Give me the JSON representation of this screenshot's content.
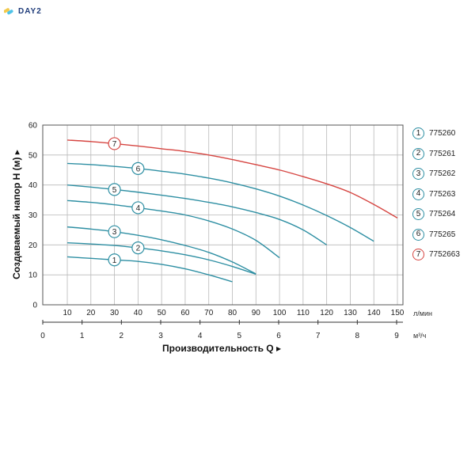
{
  "logo": {
    "text": "DAY2"
  },
  "chart_data": {
    "type": "line",
    "ylabel": "Создаваемый напор H (м) ▸",
    "xlabel": "Производительность Q ▸",
    "x_unit": "л/мин",
    "x2_unit": "м³/ч",
    "ylim": [
      0,
      60
    ],
    "xlim": [
      0,
      150
    ],
    "y_ticks": [
      "0",
      "10",
      "20",
      "30",
      "40",
      "50",
      "60"
    ],
    "x_ticks": [
      "10",
      "20",
      "30",
      "40",
      "50",
      "60",
      "70",
      "80",
      "90",
      "100",
      "110",
      "120",
      "130",
      "140",
      "150"
    ],
    "x2_ticks": [
      "0",
      "1",
      "2",
      "3",
      "4",
      "5",
      "6",
      "7",
      "8",
      "9"
    ],
    "grid": true,
    "legend_position": "right",
    "series": [
      {
        "marker": "1",
        "name": "775260",
        "color": "#2e8fa3",
        "points": [
          [
            10,
            16
          ],
          [
            20,
            15.5
          ],
          [
            30,
            15
          ],
          [
            40,
            14.5
          ],
          [
            50,
            13.5
          ],
          [
            60,
            12
          ],
          [
            70,
            10
          ],
          [
            80,
            7.7
          ]
        ]
      },
      {
        "marker": "2",
        "name": "775261",
        "color": "#2e8fa3",
        "points": [
          [
            10,
            20.7
          ],
          [
            20,
            20.3
          ],
          [
            30,
            19.8
          ],
          [
            40,
            19
          ],
          [
            50,
            18
          ],
          [
            60,
            16.7
          ],
          [
            70,
            15
          ],
          [
            80,
            12.8
          ],
          [
            90,
            10.2
          ]
        ]
      },
      {
        "marker": "3",
        "name": "775262",
        "color": "#2e8fa3",
        "points": [
          [
            10,
            26
          ],
          [
            20,
            25.3
          ],
          [
            30,
            24.4
          ],
          [
            40,
            23.2
          ],
          [
            50,
            21.7
          ],
          [
            60,
            19.8
          ],
          [
            70,
            17.5
          ],
          [
            80,
            14.3
          ],
          [
            90,
            10.3
          ]
        ]
      },
      {
        "marker": "4",
        "name": "775263",
        "color": "#2e8fa3",
        "points": [
          [
            10,
            34.8
          ],
          [
            20,
            34.2
          ],
          [
            30,
            33.4
          ],
          [
            40,
            32.4
          ],
          [
            50,
            31.3
          ],
          [
            60,
            30
          ],
          [
            70,
            28
          ],
          [
            80,
            25.3
          ],
          [
            90,
            21.5
          ],
          [
            100,
            15.7
          ]
        ]
      },
      {
        "marker": "5",
        "name": "775264",
        "color": "#2e8fa3",
        "points": [
          [
            10,
            40
          ],
          [
            20,
            39.3
          ],
          [
            30,
            38.5
          ],
          [
            40,
            37.6
          ],
          [
            50,
            36.6
          ],
          [
            60,
            35.5
          ],
          [
            70,
            34.2
          ],
          [
            80,
            32.7
          ],
          [
            90,
            30.8
          ],
          [
            100,
            28.5
          ],
          [
            110,
            25
          ],
          [
            120,
            20
          ]
        ]
      },
      {
        "marker": "6",
        "name": "775265",
        "color": "#2e8fa3",
        "points": [
          [
            10,
            47.2
          ],
          [
            20,
            46.8
          ],
          [
            30,
            46.2
          ],
          [
            40,
            45.5
          ],
          [
            50,
            44.6
          ],
          [
            60,
            43.6
          ],
          [
            70,
            42.3
          ],
          [
            80,
            40.7
          ],
          [
            90,
            38.7
          ],
          [
            100,
            36.3
          ],
          [
            110,
            33.3
          ],
          [
            120,
            29.8
          ],
          [
            130,
            25.8
          ],
          [
            140,
            21.2
          ]
        ]
      },
      {
        "marker": "7",
        "name": "7752663",
        "color": "#d64541",
        "points": [
          [
            10,
            55
          ],
          [
            20,
            54.5
          ],
          [
            30,
            53.8
          ],
          [
            40,
            53
          ],
          [
            50,
            52.1
          ],
          [
            60,
            51.2
          ],
          [
            70,
            50
          ],
          [
            80,
            48.5
          ],
          [
            90,
            46.8
          ],
          [
            100,
            45
          ],
          [
            110,
            42.8
          ],
          [
            120,
            40.4
          ],
          [
            130,
            37.5
          ],
          [
            140,
            33.5
          ],
          [
            150,
            29
          ]
        ]
      }
    ]
  }
}
